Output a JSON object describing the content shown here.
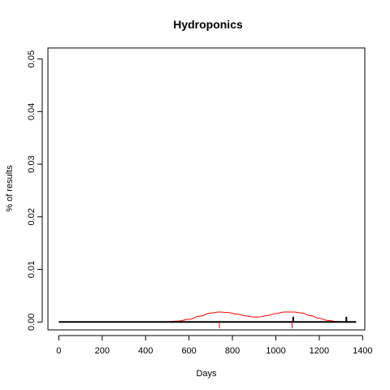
{
  "chart_data": {
    "type": "line",
    "title": "Hydroponics",
    "xlabel": "Days",
    "ylabel": "% of results",
    "xlim": [
      -50,
      1410
    ],
    "ylim": [
      -0.0015,
      0.0521
    ],
    "x_ticks": [
      0,
      200,
      400,
      600,
      800,
      1000,
      1200,
      1400
    ],
    "x_tick_labels": [
      "0",
      "200",
      "400",
      "600",
      "800",
      "1000",
      "1200",
      "1400"
    ],
    "y_ticks": [
      0.0,
      0.01,
      0.02,
      0.03,
      0.04,
      0.05
    ],
    "y_tick_labels": [
      "0.00",
      "0.01",
      "0.02",
      "0.03",
      "0.04",
      "0.05"
    ],
    "grid": false,
    "colors": {
      "density": "#ff0000",
      "baseline": "#000000",
      "spikes": "#000000"
    },
    "series": [
      {
        "kind": "density-curve",
        "x": [
          450,
          500,
          550,
          600,
          650,
          700,
          740,
          780,
          820,
          860,
          900,
          920,
          960,
          1000,
          1040,
          1080,
          1120,
          1160,
          1200,
          1240,
          1280,
          1320,
          1360,
          1370
        ],
        "y": [
          0.0,
          5e-05,
          0.00018,
          0.0005,
          0.0011,
          0.0017,
          0.0019,
          0.0018,
          0.0015,
          0.00115,
          0.00095,
          0.00095,
          0.0012,
          0.0016,
          0.0019,
          0.0019,
          0.0017,
          0.0012,
          0.0007,
          0.0003,
          0.0001,
          3e-05,
          0.0,
          0.0
        ]
      },
      {
        "kind": "baseline",
        "x": [
          0,
          1370
        ],
        "y": [
          0.0,
          0.0
        ]
      },
      {
        "kind": "vertical-marks",
        "color": "#ff0000",
        "x": [
          740,
          1075
        ],
        "y_from": -0.0012,
        "y_to": 0.0
      },
      {
        "kind": "spikes",
        "color": "#000000",
        "x": [
          1080,
          1325
        ],
        "y": [
          0.001,
          0.001
        ]
      }
    ]
  }
}
